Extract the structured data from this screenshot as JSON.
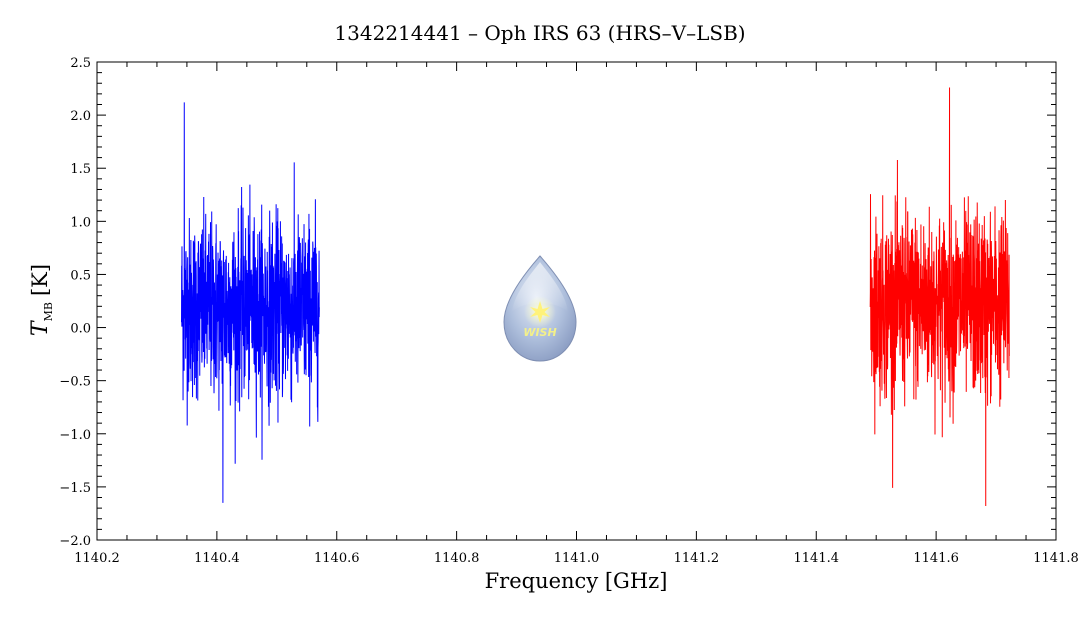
{
  "chart_data": {
    "type": "line",
    "title": "1342214441 – Oph IRS 63 (HRS–V–LSB)",
    "xlabel": "Frequency [GHz]",
    "ylabel_symbol": "T",
    "ylabel_subscript": "MB",
    "ylabel_unit": "[K]",
    "xlim": [
      1140.2,
      1141.8
    ],
    "ylim": [
      -2.0,
      2.5
    ],
    "x_ticks": [
      "1140.2",
      "1140.4",
      "1140.6",
      "1140.8",
      "1141.0",
      "1141.2",
      "1141.4",
      "1141.6",
      "1141.8"
    ],
    "y_ticks": [
      "−2.0",
      "−1.5",
      "−1.0",
      "−0.5",
      "0.0",
      "0.5",
      "1.0",
      "1.5",
      "2.0",
      "2.5"
    ],
    "grid": false,
    "logo_text": "WISH",
    "series": [
      {
        "color": "#0000ff",
        "x_start": 1140.341,
        "x_end": 1140.571,
        "mean": 0.18,
        "noise_sigma": 0.42,
        "max": 2.12,
        "min": -1.65
      },
      {
        "color": "#ff0000",
        "x_start": 1141.49,
        "x_end": 1141.722,
        "mean": 0.22,
        "noise_sigma": 0.43,
        "max": 2.26,
        "min": -1.68
      }
    ]
  }
}
